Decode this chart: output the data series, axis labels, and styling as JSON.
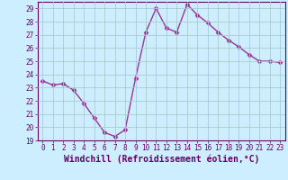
{
  "x": [
    0,
    1,
    2,
    3,
    4,
    5,
    6,
    7,
    8,
    9,
    10,
    11,
    12,
    13,
    14,
    15,
    16,
    17,
    18,
    19,
    20,
    21,
    22,
    23
  ],
  "y": [
    23.5,
    23.2,
    23.3,
    22.8,
    21.8,
    20.7,
    19.6,
    19.3,
    19.8,
    23.7,
    27.2,
    29.0,
    27.5,
    27.2,
    29.3,
    28.5,
    27.9,
    27.2,
    26.6,
    26.1,
    25.5,
    25.0,
    25.0,
    24.9
  ],
  "line_color": "#993399",
  "marker": "D",
  "markersize": 2.5,
  "linewidth": 1.0,
  "bg_color": "#cceeff",
  "grid_color": "#aacccc",
  "xlabel": "Windchill (Refroidissement éolien,°C)",
  "xlabel_fontsize": 7,
  "ylim": [
    19,
    29.5
  ],
  "xlim": [
    -0.5,
    23.5
  ],
  "yticks": [
    19,
    20,
    21,
    22,
    23,
    24,
    25,
    26,
    27,
    28,
    29
  ],
  "xticks": [
    0,
    1,
    2,
    3,
    4,
    5,
    6,
    7,
    8,
    9,
    10,
    11,
    12,
    13,
    14,
    15,
    16,
    17,
    18,
    19,
    20,
    21,
    22,
    23
  ],
  "tick_fontsize": 5.5,
  "xlabel_fontsize_bold": true
}
